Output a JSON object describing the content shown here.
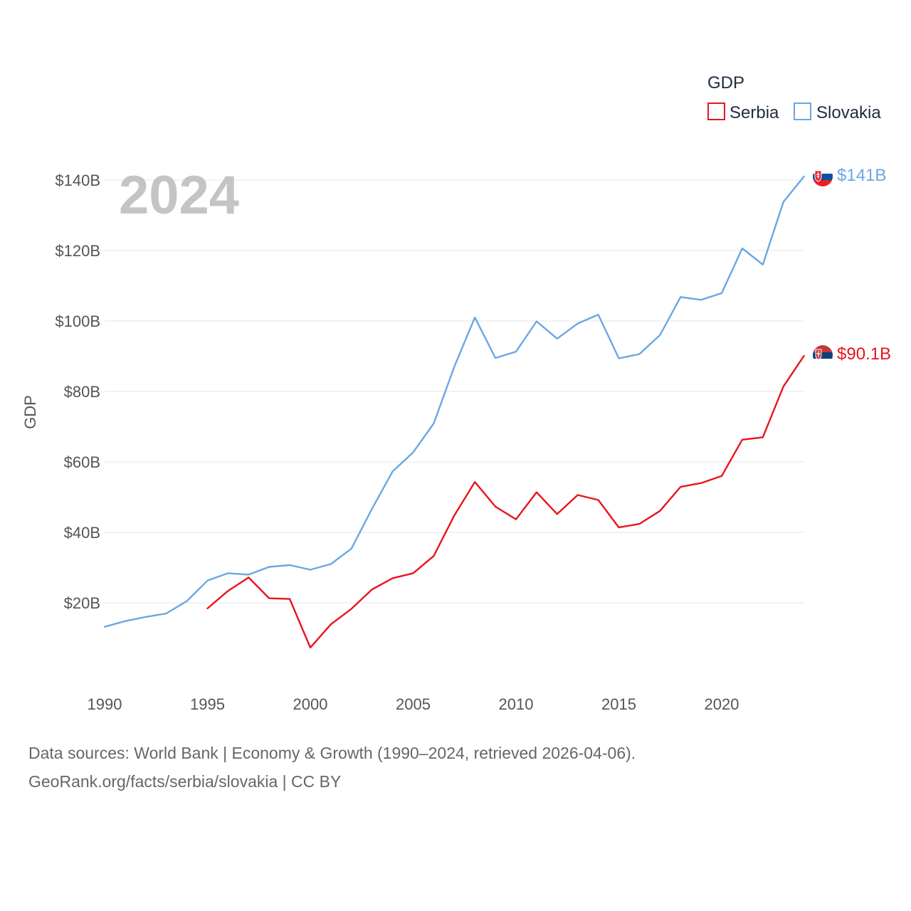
{
  "chart_data": {
    "type": "line",
    "title": "",
    "legend_title": "GDP",
    "legend_position": "top-right",
    "ylabel": "GDP",
    "xlabel": "",
    "ylim": [
      0,
      150
    ],
    "xlim": [
      1990,
      2024
    ],
    "y_ticks": [
      20,
      40,
      60,
      80,
      100,
      120,
      140
    ],
    "y_tick_labels": [
      "$20B",
      "$40B",
      "$60B",
      "$80B",
      "$100B",
      "$120B",
      "$140B"
    ],
    "x_ticks": [
      1990,
      1995,
      2000,
      2005,
      2010,
      2015,
      2020
    ],
    "x_tick_labels": [
      "1990",
      "1995",
      "2000",
      "2005",
      "2010",
      "2015",
      "2020"
    ],
    "grid": true,
    "year_label": "2024",
    "series": [
      {
        "name": "Serbia",
        "color": "#e8141e",
        "end_label": "$90.1B",
        "x": [
          1995,
          1996,
          1997,
          1998,
          1999,
          2000,
          2001,
          2002,
          2003,
          2004,
          2005,
          2006,
          2007,
          2008,
          2009,
          2010,
          2011,
          2012,
          2013,
          2014,
          2015,
          2016,
          2017,
          2018,
          2019,
          2020,
          2021,
          2022,
          2023,
          2024
        ],
        "values": [
          18.4,
          23.4,
          27.2,
          21.3,
          21.1,
          7.3,
          13.9,
          18.3,
          23.8,
          27.0,
          28.4,
          33.3,
          44.8,
          54.3,
          47.3,
          43.7,
          51.4,
          45.2,
          50.6,
          49.2,
          41.4,
          42.4,
          46.1,
          52.9,
          54.0,
          56.0,
          66.3,
          67.0,
          81.4,
          90.1
        ]
      },
      {
        "name": "Slovakia",
        "color": "#6aa7e2",
        "end_label": "$141B",
        "x": [
          1990,
          1991,
          1992,
          1993,
          1994,
          1995,
          1996,
          1997,
          1998,
          1999,
          2000,
          2001,
          2002,
          2003,
          2004,
          2005,
          2006,
          2007,
          2008,
          2009,
          2010,
          2011,
          2012,
          2013,
          2014,
          2015,
          2016,
          2017,
          2018,
          2019,
          2020,
          2021,
          2022,
          2023,
          2024
        ],
        "values": [
          13.2,
          14.8,
          16.0,
          17.0,
          20.5,
          26.3,
          28.4,
          28.0,
          30.2,
          30.7,
          29.4,
          31.0,
          35.4,
          46.7,
          57.3,
          62.7,
          70.9,
          87.0,
          101.0,
          89.5,
          91.3,
          99.9,
          95.0,
          99.3,
          101.8,
          89.4,
          90.6,
          96.0,
          106.8,
          106.0,
          107.9,
          120.6,
          116.0,
          133.8,
          141.0
        ]
      }
    ]
  },
  "footer": {
    "line1": "Data sources: World Bank | Economy & Growth (1990–2024, retrieved 2026-04-06).",
    "line2": "GeoRank.org/facts/serbia/slovakia | CC BY"
  }
}
